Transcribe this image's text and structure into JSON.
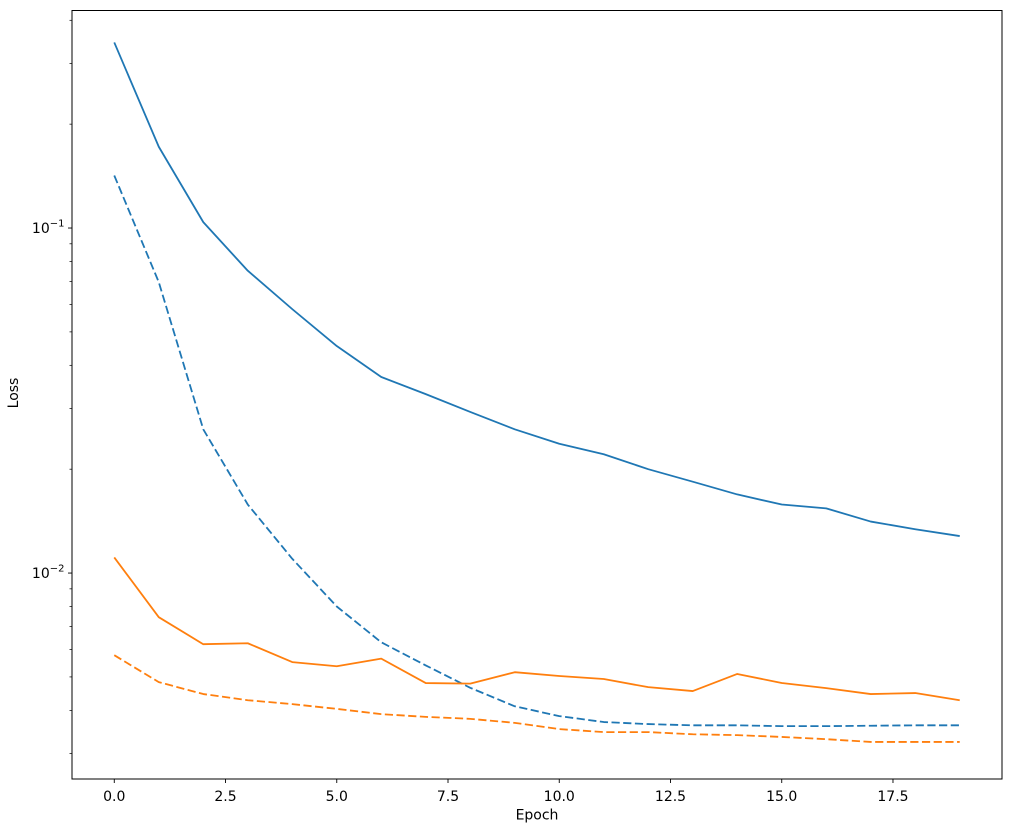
{
  "figure": {
    "background": "#ffffff"
  },
  "chart_data": {
    "type": "line",
    "title": "",
    "xlabel": "Epoch",
    "ylabel": "Loss",
    "xscale": "linear",
    "yscale": "log",
    "grid": false,
    "legend": "none",
    "xlim": [
      -0.95,
      19.95
    ],
    "ylim": [
      0.00253,
      0.427
    ],
    "x": [
      0,
      1,
      2,
      3,
      4,
      5,
      6,
      7,
      8,
      9,
      10,
      11,
      12,
      13,
      14,
      15,
      16,
      17,
      18,
      19
    ],
    "xticks": {
      "values": [
        0,
        2.5,
        5,
        7.5,
        10,
        12.5,
        15,
        17.5
      ],
      "labels": [
        "0.0",
        "2.5",
        "5.0",
        "7.5",
        "10.0",
        "12.5",
        "15.0",
        "17.5"
      ]
    },
    "yticks": [
      {
        "value": 0.1,
        "base": "10",
        "exponent": "−1"
      },
      {
        "value": 0.01,
        "base": "10",
        "exponent": "−2"
      }
    ],
    "series": [
      {
        "name": "blue-solid",
        "color": "#1f77b4",
        "style": "solid",
        "values": [
          0.345,
          0.172,
          0.104,
          0.0752,
          0.0582,
          0.0455,
          0.037,
          0.033,
          0.0293,
          0.0261,
          0.0237,
          0.0221,
          0.02,
          0.0184,
          0.0169,
          0.0158,
          0.0154,
          0.0141,
          0.0134,
          0.0128
        ]
      },
      {
        "name": "blue-dashed",
        "color": "#1f77b4",
        "style": "dashed",
        "values": [
          0.142,
          0.0697,
          0.0261,
          0.0158,
          0.011,
          0.008,
          0.0063,
          0.0054,
          0.00465,
          0.00411,
          0.00385,
          0.0037,
          0.00365,
          0.00362,
          0.00362,
          0.0036,
          0.0036,
          0.00361,
          0.00362,
          0.00362
        ]
      },
      {
        "name": "orange-solid",
        "color": "#ff7f0e",
        "style": "solid",
        "values": [
          0.0111,
          0.00745,
          0.00622,
          0.00626,
          0.00552,
          0.00537,
          0.00565,
          0.0048,
          0.00478,
          0.00516,
          0.00503,
          0.00493,
          0.00467,
          0.00455,
          0.0051,
          0.0048,
          0.00464,
          0.00446,
          0.00449,
          0.00428
        ]
      },
      {
        "name": "orange-dashed",
        "color": "#ff7f0e",
        "style": "dashed",
        "values": [
          0.00578,
          0.00483,
          0.00446,
          0.00428,
          0.00417,
          0.00404,
          0.0039,
          0.00383,
          0.00378,
          0.00368,
          0.00353,
          0.00346,
          0.00346,
          0.00341,
          0.00339,
          0.00335,
          0.0033,
          0.00324,
          0.00324,
          0.00324
        ]
      }
    ]
  }
}
